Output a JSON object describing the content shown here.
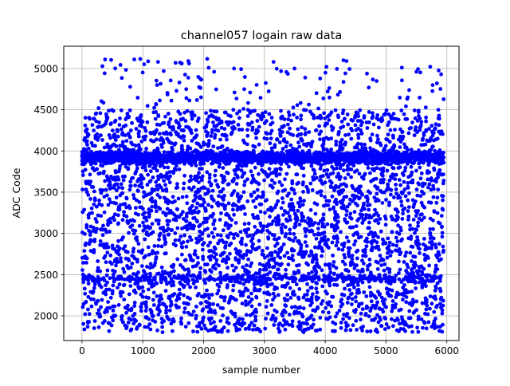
{
  "chart_data": {
    "type": "scatter",
    "title": "channel057 logain raw data",
    "xlabel": "sample number",
    "ylabel": "ADC Code",
    "xlim": [
      -300,
      6200
    ],
    "ylim": [
      1700,
      5270
    ],
    "xticks": [
      0,
      1000,
      2000,
      3000,
      4000,
      5000,
      6000
    ],
    "yticks": [
      2000,
      2500,
      3000,
      3500,
      4000,
      4500,
      5000
    ],
    "grid": true,
    "marker_color": "#0000ff",
    "series": [
      {
        "n_points": 5950,
        "x_range": [
          0,
          5950
        ],
        "bands": [
          {
            "center": 3920,
            "spread": 70,
            "share": 0.3
          },
          {
            "center": 2450,
            "spread": 50,
            "share": 0.05
          }
        ],
        "background_range": [
          1800,
          4500
        ],
        "background_share": 0.63,
        "outlier_range": [
          4500,
          5120
        ],
        "outlier_share": 0.02,
        "notable_points": [
          {
            "x": 380,
            "y": 5110
          },
          {
            "x": 860,
            "y": 5110
          },
          {
            "x": 1250,
            "y": 5080
          },
          {
            "x": 1750,
            "y": 5090
          },
          {
            "x": 2500,
            "y": 5000
          },
          {
            "x": 3150,
            "y": 5080
          },
          {
            "x": 4020,
            "y": 5020
          },
          {
            "x": 4300,
            "y": 5100
          },
          {
            "x": 4350,
            "y": 5090
          },
          {
            "x": 5500,
            "y": 4960
          }
        ]
      }
    ]
  }
}
